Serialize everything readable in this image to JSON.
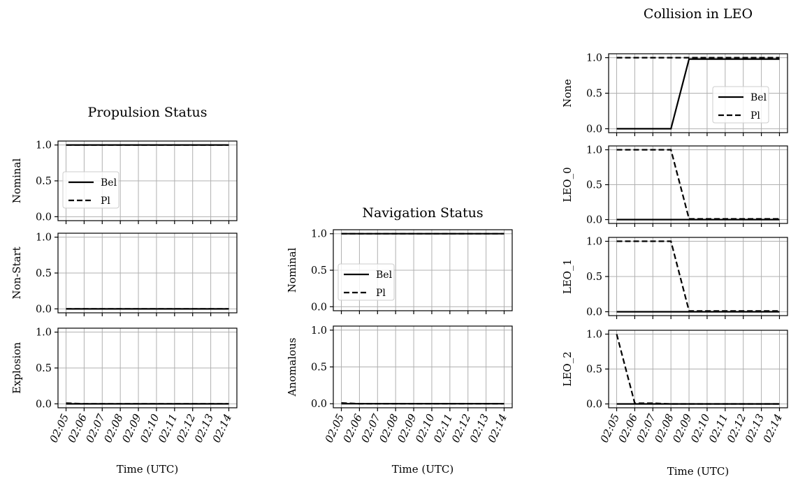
{
  "chart_data": [
    {
      "type": "line",
      "title": "Propulsion Status",
      "xlabel": "Time (UTC)",
      "x": [
        "02:05",
        "02:06",
        "02:07",
        "02:08",
        "02:09",
        "02:10",
        "02:11",
        "02:12",
        "02:13",
        "02:14"
      ],
      "ylim": [
        0,
        1
      ],
      "yticks": [
        "0.0",
        "0.5",
        "1.0"
      ],
      "grid": true,
      "legend_subplot": 0,
      "legend_placement": "lower-left",
      "subplots": [
        {
          "ylabel": "Nominal",
          "series": [
            {
              "name": "Bel",
              "style": "solid",
              "values": [
                1,
                1,
                1,
                1,
                1,
                1,
                1,
                1,
                1,
                1
              ]
            },
            {
              "name": "Pl",
              "style": "dashed",
              "values": [
                1,
                1,
                1,
                1,
                1,
                1,
                1,
                1,
                1,
                1
              ]
            }
          ]
        },
        {
          "ylabel": "Non-Start",
          "series": [
            {
              "name": "Bel",
              "style": "solid",
              "values": [
                0,
                0,
                0,
                0,
                0,
                0,
                0,
                0,
                0,
                0
              ]
            },
            {
              "name": "Pl",
              "style": "dashed",
              "values": [
                0,
                0,
                0,
                0,
                0,
                0,
                0,
                0,
                0,
                0
              ]
            }
          ]
        },
        {
          "ylabel": "Explosion",
          "series": [
            {
              "name": "Bel",
              "style": "solid",
              "values": [
                0,
                0,
                0,
                0,
                0,
                0,
                0,
                0,
                0,
                0
              ]
            },
            {
              "name": "Pl",
              "style": "dashed",
              "values": [
                0.01,
                0,
                0,
                0,
                0,
                0,
                0,
                0,
                0,
                0
              ]
            }
          ]
        }
      ]
    },
    {
      "type": "line",
      "title": "Navigation Status",
      "xlabel": "Time (UTC)",
      "x": [
        "02:05",
        "02:06",
        "02:07",
        "02:08",
        "02:09",
        "02:10",
        "02:11",
        "02:12",
        "02:13",
        "02:14"
      ],
      "ylim": [
        0,
        1
      ],
      "yticks": [
        "0.0",
        "0.5",
        "1.0"
      ],
      "grid": true,
      "legend_subplot": 0,
      "legend_placement": "lower-left",
      "subplots": [
        {
          "ylabel": "Nominal",
          "series": [
            {
              "name": "Bel",
              "style": "solid",
              "values": [
                1,
                1,
                1,
                1,
                1,
                1,
                1,
                1,
                1,
                1
              ]
            },
            {
              "name": "Pl",
              "style": "dashed",
              "values": [
                1,
                1,
                1,
                1,
                1,
                1,
                1,
                1,
                1,
                1
              ]
            }
          ]
        },
        {
          "ylabel": "Anomalous",
          "series": [
            {
              "name": "Bel",
              "style": "solid",
              "values": [
                0,
                0,
                0,
                0,
                0,
                0,
                0,
                0,
                0,
                0
              ]
            },
            {
              "name": "Pl",
              "style": "dashed",
              "values": [
                0.01,
                0,
                0,
                0,
                0,
                0,
                0,
                0,
                0,
                0
              ]
            }
          ]
        }
      ]
    },
    {
      "type": "line",
      "title": "Collision in LEO",
      "xlabel": "Time (UTC)",
      "x": [
        "02:05",
        "02:06",
        "02:07",
        "02:08",
        "02:09",
        "02:10",
        "02:11",
        "02:12",
        "02:13",
        "02:14"
      ],
      "ylim": [
        0,
        1
      ],
      "yticks": [
        "0.0",
        "0.5",
        "1.0"
      ],
      "grid": true,
      "legend_subplot": 0,
      "legend_placement": "lower-right",
      "subplots": [
        {
          "ylabel": "None",
          "series": [
            {
              "name": "Bel",
              "style": "solid",
              "values": [
                0,
                0,
                0,
                0,
                0.98,
                0.98,
                0.98,
                0.98,
                0.98,
                0.98
              ]
            },
            {
              "name": "Pl",
              "style": "dashed",
              "values": [
                1,
                1,
                1,
                1,
                1,
                1,
                1,
                1,
                1,
                1
              ]
            }
          ]
        },
        {
          "ylabel": "LEO_0",
          "series": [
            {
              "name": "Bel",
              "style": "solid",
              "values": [
                0,
                0,
                0,
                0,
                0,
                0,
                0,
                0,
                0,
                0
              ]
            },
            {
              "name": "Pl",
              "style": "dashed",
              "values": [
                1,
                1,
                1,
                1,
                0.01,
                0.01,
                0.01,
                0.01,
                0.01,
                0.01
              ]
            }
          ]
        },
        {
          "ylabel": "LEO_1",
          "series": [
            {
              "name": "Bel",
              "style": "solid",
              "values": [
                0,
                0,
                0,
                0,
                0,
                0,
                0,
                0,
                0,
                0
              ]
            },
            {
              "name": "Pl",
              "style": "dashed",
              "values": [
                1,
                1,
                1,
                1,
                0.01,
                0.01,
                0.01,
                0.01,
                0.01,
                0.01
              ]
            }
          ]
        },
        {
          "ylabel": "LEO_2",
          "series": [
            {
              "name": "Bel",
              "style": "solid",
              "values": [
                0,
                0,
                0,
                0,
                0,
                0,
                0,
                0,
                0,
                0
              ]
            },
            {
              "name": "Pl",
              "style": "dashed",
              "values": [
                1,
                0.01,
                0.01,
                0,
                0,
                0,
                0,
                0,
                0,
                0
              ]
            }
          ]
        }
      ]
    }
  ]
}
